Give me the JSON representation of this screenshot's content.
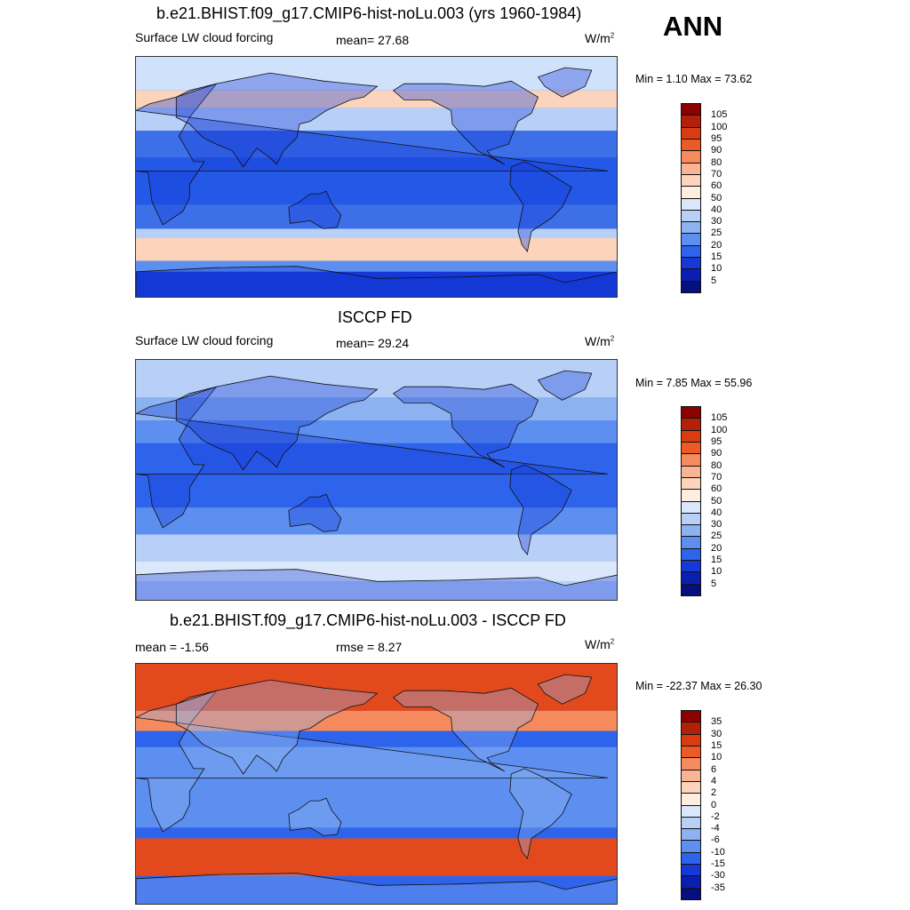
{
  "season": "ANN",
  "panels": [
    {
      "id": "model",
      "title": "b.e21.BHIST.f09_g17.CMIP6-hist-noLu.003 (yrs 1960-1984)",
      "left_label": "Surface LW cloud forcing",
      "center_label": "mean=  27.68",
      "units_base": "W/m",
      "units_exp": "2",
      "minmax": "Min =   1.10 Max =  73.62",
      "colorbar_levels": [
        "105",
        "100",
        "95",
        "90",
        "80",
        "70",
        "60",
        "50",
        "40",
        "30",
        "25",
        "20",
        "15",
        "10",
        "5"
      ],
      "colorbar_colors": [
        "#8b0000",
        "#b3200a",
        "#d93c10",
        "#ec5a26",
        "#f58a5c",
        "#fab393",
        "#fcd4bb",
        "#fdeede",
        "#dbe8fb",
        "#b8d0f7",
        "#8cb2f1",
        "#5c8ff0",
        "#2e64ec",
        "#1538d6",
        "#0a1fb0",
        "#051080"
      ]
    },
    {
      "id": "obs",
      "title": "ISCCP FD",
      "left_label": "Surface LW cloud forcing",
      "center_label": "mean=  29.24",
      "units_base": "W/m",
      "units_exp": "2",
      "minmax": "Min =   7.85 Max =  55.96",
      "colorbar_levels": [
        "105",
        "100",
        "95",
        "90",
        "80",
        "70",
        "60",
        "50",
        "40",
        "30",
        "25",
        "20",
        "15",
        "10",
        "5"
      ],
      "colorbar_colors": [
        "#8b0000",
        "#b3200a",
        "#d93c10",
        "#ec5a26",
        "#f58a5c",
        "#fab393",
        "#fcd4bb",
        "#fdeede",
        "#dbe8fb",
        "#b8d0f7",
        "#8cb2f1",
        "#5c8ff0",
        "#2e64ec",
        "#1538d6",
        "#0a1fb0",
        "#051080"
      ]
    },
    {
      "id": "diff",
      "title": "b.e21.BHIST.f09_g17.CMIP6-hist-noLu.003 - ISCCP FD",
      "left_label": "mean =  -1.56",
      "center_label": "rmse =   8.27",
      "units_base": "W/m",
      "units_exp": "2",
      "minmax": "Min = -22.37 Max =  26.30",
      "colorbar_levels": [
        "35",
        "30",
        "15",
        "10",
        "6",
        "4",
        "2",
        "0",
        "-2",
        "-4",
        "-6",
        "-10",
        "-15",
        "-30",
        "-35"
      ],
      "colorbar_colors": [
        "#8b0000",
        "#b3200a",
        "#d93c10",
        "#ec5a26",
        "#f58a5c",
        "#fab393",
        "#fcd4bb",
        "#fdeede",
        "#dbe8fb",
        "#b8d0f7",
        "#8cb2f1",
        "#5c8ff0",
        "#2e64ec",
        "#1538d6",
        "#0a1fb0",
        "#051080"
      ]
    }
  ],
  "map_fields": {
    "model": {
      "ocean": "#2458e6",
      "bands": [
        {
          "lat_from": 90,
          "lat_to": 65,
          "color": "#cfe1fb"
        },
        {
          "lat_from": 65,
          "lat_to": 52,
          "color": "#fcd4bb"
        },
        {
          "lat_from": 52,
          "lat_to": 35,
          "color": "#b8d0f7"
        },
        {
          "lat_from": 35,
          "lat_to": 15,
          "color": "#3d6fe8"
        },
        {
          "lat_from": 15,
          "lat_to": -20,
          "color": "#2458e6"
        },
        {
          "lat_from": -20,
          "lat_to": -38,
          "color": "#3d6fe8"
        },
        {
          "lat_from": -38,
          "lat_to": -45,
          "color": "#b8d0f7"
        },
        {
          "lat_from": -45,
          "lat_to": -62,
          "color": "#fcd4bb"
        },
        {
          "lat_from": -62,
          "lat_to": -70,
          "color": "#5c8ff0"
        },
        {
          "lat_from": -70,
          "lat_to": -90,
          "color": "#1538d6"
        }
      ],
      "land": "#1538d6"
    },
    "obs": {
      "ocean": "#5c8ff0",
      "bands": [
        {
          "lat_from": 90,
          "lat_to": 62,
          "color": "#b8d0f7"
        },
        {
          "lat_from": 62,
          "lat_to": 45,
          "color": "#8cb2f1"
        },
        {
          "lat_from": 45,
          "lat_to": 28,
          "color": "#5c8ff0"
        },
        {
          "lat_from": 28,
          "lat_to": -20,
          "color": "#2e64ec"
        },
        {
          "lat_from": -20,
          "lat_to": -40,
          "color": "#5c8ff0"
        },
        {
          "lat_from": -40,
          "lat_to": -60,
          "color": "#b8d0f7"
        },
        {
          "lat_from": -60,
          "lat_to": -75,
          "color": "#dbe8fb"
        },
        {
          "lat_from": -75,
          "lat_to": -90,
          "color": "#b8d0f7"
        }
      ],
      "land": "#1538d6"
    },
    "diff": {
      "ocean": "#2e64ec",
      "bands": [
        {
          "lat_from": 90,
          "lat_to": 55,
          "color": "#e24a1e"
        },
        {
          "lat_from": 55,
          "lat_to": 40,
          "color": "#f58a5c"
        },
        {
          "lat_from": 40,
          "lat_to": 28,
          "color": "#2e64ec"
        },
        {
          "lat_from": 28,
          "lat_to": -32,
          "color": "#5c8ff0"
        },
        {
          "lat_from": -32,
          "lat_to": -40,
          "color": "#2e64ec"
        },
        {
          "lat_from": -40,
          "lat_to": -68,
          "color": "#e24a1e"
        },
        {
          "lat_from": -68,
          "lat_to": -90,
          "color": "#2e64ec"
        }
      ],
      "land": "#8cb2f1"
    }
  }
}
